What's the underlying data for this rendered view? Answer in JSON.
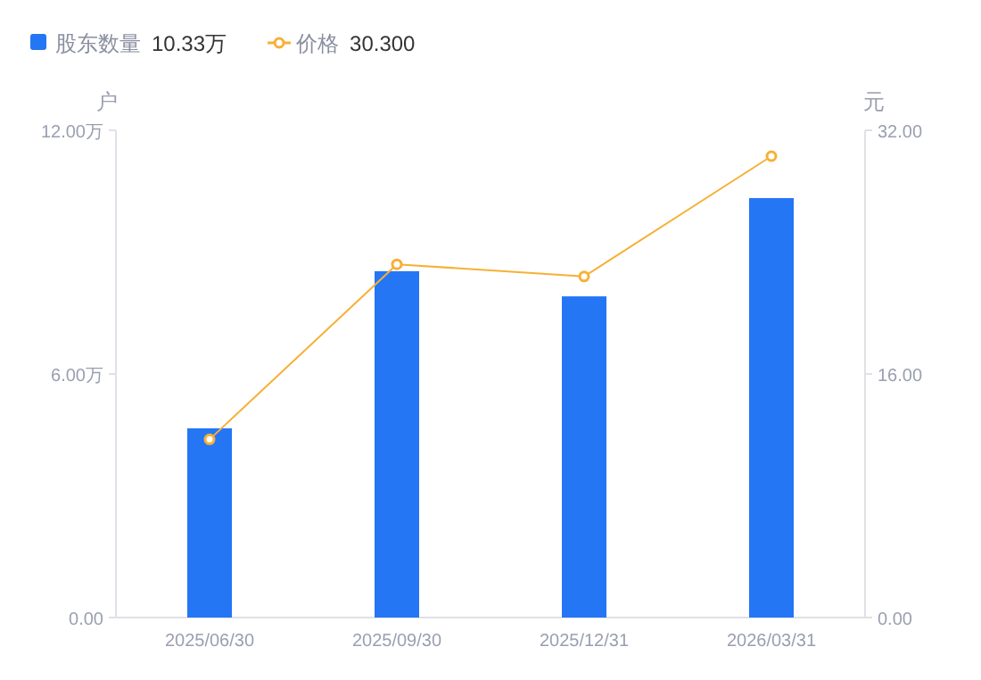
{
  "chart_data": {
    "type": "bar",
    "categories": [
      "2025/06/30",
      "2025/09/30",
      "2025/12/31",
      "2026/03/31"
    ],
    "series": [
      {
        "name": "股东数量",
        "color": "#2476f5",
        "values": [
          4.66,
          8.53,
          7.91,
          10.33
        ]
      },
      {
        "name": "价格",
        "type": "line",
        "axis": "y2",
        "color": "#f7b036",
        "marker": "circle",
        "values": [
          11.7,
          23.2,
          22.4,
          30.3
        ]
      }
    ],
    "annotations": [
      "10.33万",
      "30.300"
    ],
    "ylabel": "户",
    "y2label": "元",
    "ylim": [
      0,
      12
    ],
    "yticks": [
      {
        "value": 0,
        "label": "0.00"
      },
      {
        "value": 6,
        "label": "6.00万"
      },
      {
        "value": 12,
        "label": "12.00万"
      }
    ],
    "y2lim": [
      0,
      32
    ],
    "y2ticks": [
      {
        "value": 0,
        "label": "0.00"
      },
      {
        "value": 16,
        "label": "16.00"
      },
      {
        "value": 32,
        "label": "32.00"
      }
    ],
    "legend": "top left"
  }
}
